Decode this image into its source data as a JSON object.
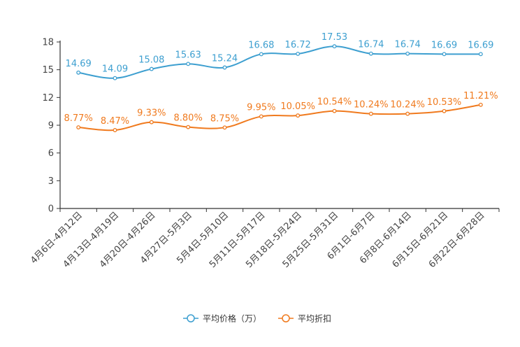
{
  "chart_data": {
    "type": "line",
    "title": "",
    "xlabel": "",
    "ylabel": "",
    "ylim": [
      0,
      18
    ],
    "yticks": [
      0,
      3,
      6,
      9,
      12,
      15,
      18
    ],
    "grid": false,
    "legend_position": "bottom-center",
    "categories": [
      "4月6日-4月12日",
      "4月13日-4月19日",
      "4月20日-4月26日",
      "4月27日-5月3日",
      "5月4日-5月10日",
      "5月11日-5月17日",
      "5月18日-5月24日",
      "5月25日-5月31日",
      "6月1日-6月7日",
      "6月8日-6月14日",
      "6月15日-6月21日",
      "6月22日-6月28日"
    ],
    "series": [
      {
        "name": "平均价格（万）",
        "color": "#3d9fd0",
        "values": [
          14.69,
          14.09,
          15.08,
          15.63,
          15.24,
          16.68,
          16.72,
          17.53,
          16.74,
          16.74,
          16.69,
          16.69
        ],
        "labels": [
          "14.69",
          "14.09",
          "15.08",
          "15.63",
          "15.24",
          "16.68",
          "16.72",
          "17.53",
          "16.74",
          "16.74",
          "16.69",
          "16.69"
        ]
      },
      {
        "name": "平均折扣",
        "color": "#f07a1e",
        "values": [
          8.77,
          8.47,
          9.33,
          8.8,
          8.75,
          9.95,
          10.05,
          10.54,
          10.24,
          10.24,
          10.53,
          11.21
        ],
        "labels": [
          "8.77%",
          "8.47%",
          "9.33%",
          "8.80%",
          "8.75%",
          "9.95%",
          "10.05%",
          "10.54%",
          "10.24%",
          "10.24%",
          "10.53%",
          "11.21%"
        ]
      }
    ]
  }
}
